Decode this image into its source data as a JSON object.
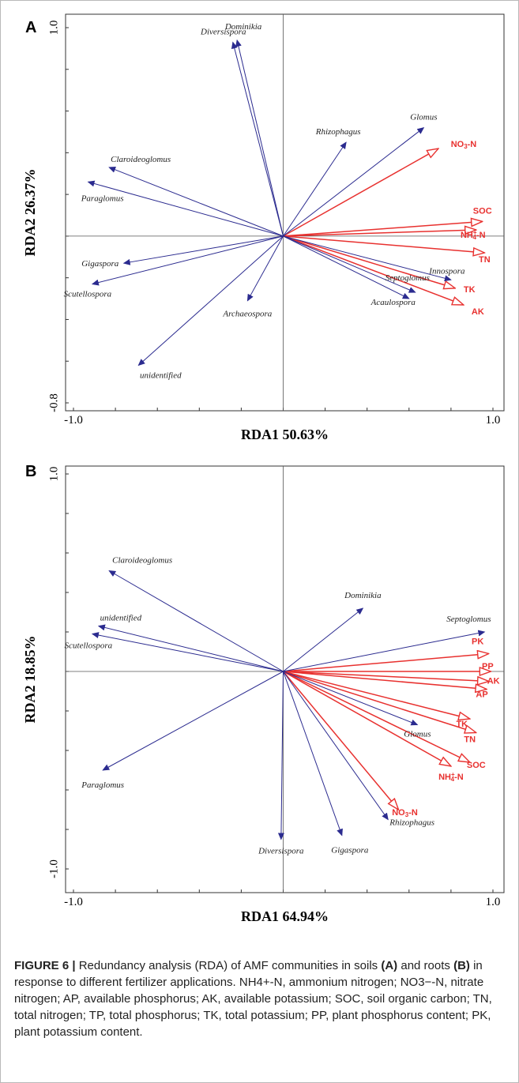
{
  "colors": {
    "species": "#2b2b8f",
    "environment": "#e8312f",
    "axis": "#555555"
  },
  "chart_data": [
    {
      "panel": "A",
      "type": "scatter",
      "xlabel": "RDA1 50.63%",
      "ylabel": "RDA2 26.37%",
      "xlim": [
        -1.0,
        1.0
      ],
      "ylim": [
        -0.8,
        1.0
      ],
      "x_ticks": [
        "-1.0",
        "1.0"
      ],
      "y_ticks": [
        "-0.8",
        "1.0"
      ],
      "species": [
        {
          "name": "Dominikia",
          "x": -0.22,
          "y": 0.94
        },
        {
          "name": "Diversispora",
          "x": -0.24,
          "y": 0.93
        },
        {
          "name": "Claroideoglomus",
          "x": -0.83,
          "y": 0.33
        },
        {
          "name": "Paraglomus",
          "x": -0.93,
          "y": 0.26
        },
        {
          "name": "Gigaspora",
          "x": -0.76,
          "y": -0.13
        },
        {
          "name": "Scutellospora",
          "x": -0.91,
          "y": -0.23
        },
        {
          "name": "unidentified",
          "x": -0.69,
          "y": -0.62
        },
        {
          "name": "Archaeospora",
          "x": -0.17,
          "y": -0.31
        },
        {
          "name": "Rhizophagus",
          "x": 0.3,
          "y": 0.45
        },
        {
          "name": "Glomus",
          "x": 0.67,
          "y": 0.52
        },
        {
          "name": "Innospora",
          "x": 0.8,
          "y": -0.21
        },
        {
          "name": "Septoglomus",
          "x": 0.63,
          "y": -0.27
        },
        {
          "name": "Acaulospora",
          "x": 0.6,
          "y": -0.3
        }
      ],
      "environment": [
        {
          "name": "NO3-N",
          "label": "NO3-N",
          "x": 0.74,
          "y": 0.42
        },
        {
          "name": "SOC",
          "label": "SOC",
          "x": 0.95,
          "y": 0.07
        },
        {
          "name": "NH4+-N",
          "label": "NH+4-N",
          "x": 0.92,
          "y": 0.03
        },
        {
          "name": "TN",
          "label": "TN",
          "x": 0.96,
          "y": -0.08
        },
        {
          "name": "TK",
          "label": "TK",
          "x": 0.82,
          "y": -0.25
        },
        {
          "name": "AK",
          "label": "AK",
          "x": 0.86,
          "y": -0.33
        }
      ]
    },
    {
      "panel": "B",
      "type": "scatter",
      "xlabel": "RDA1 64.94%",
      "ylabel": "RDA2 18.85%",
      "xlim": [
        -1.0,
        1.0
      ],
      "ylim": [
        -1.0,
        1.0
      ],
      "x_ticks": [
        "-1.0",
        "1.0"
      ],
      "y_ticks": [
        "-1.0",
        "1.0"
      ],
      "species": [
        {
          "name": "Claroideoglomus",
          "x": -0.83,
          "y": 0.51
        },
        {
          "name": "unidentified",
          "x": -0.88,
          "y": 0.23
        },
        {
          "name": "Scutellospora",
          "x": -0.91,
          "y": 0.19
        },
        {
          "name": "Paraglomus",
          "x": -0.86,
          "y": -0.5
        },
        {
          "name": "Dominikia",
          "x": 0.38,
          "y": 0.32
        },
        {
          "name": "Septoglomus",
          "x": 0.96,
          "y": 0.2
        },
        {
          "name": "Glomus",
          "x": 0.64,
          "y": -0.27
        },
        {
          "name": "Diversispora",
          "x": -0.01,
          "y": -0.85
        },
        {
          "name": "Rhizophagus",
          "x": 0.5,
          "y": -0.75
        },
        {
          "name": "Gigaspora",
          "x": 0.28,
          "y": -0.83
        }
      ],
      "environment": [
        {
          "name": "PK",
          "label": "PK",
          "x": 0.98,
          "y": 0.09
        },
        {
          "name": "PP",
          "label": "PP",
          "x": 0.99,
          "y": 0.0
        },
        {
          "name": "AK",
          "label": "AK",
          "x": 0.98,
          "y": -0.05
        },
        {
          "name": "AP",
          "label": "AP",
          "x": 0.97,
          "y": -0.09
        },
        {
          "name": "TK",
          "label": "TK",
          "x": 0.89,
          "y": -0.24
        },
        {
          "name": "TN",
          "label": "TN",
          "x": 0.92,
          "y": -0.31
        },
        {
          "name": "SOC",
          "label": "SOC",
          "x": 0.89,
          "y": -0.46
        },
        {
          "name": "NH4+-N",
          "label": "NH+4-N",
          "x": 0.8,
          "y": -0.48
        },
        {
          "name": "NO3-N",
          "label": "NO3-N",
          "x": 0.55,
          "y": -0.7
        }
      ]
    }
  ],
  "caption": {
    "figure_label": "FIGURE 6 |",
    "segments": [
      {
        "text": " Redundancy analysis (RDA) of AMF communities in soils ",
        "bold": false
      },
      {
        "text": "(A)",
        "bold": true
      },
      {
        "text": " and roots ",
        "bold": false
      },
      {
        "text": "(B)",
        "bold": true
      },
      {
        "text": " in response to different fertilizer applications. NH4+-N, ammonium nitrogen; NO3−-N, nitrate nitrogen; AP, available phosphorus; AK, available potassium; SOC, soil organic carbon; TN, total nitrogen; TP, total phosphorus; TK, total potassium; PP, plant phosphorus content; PK, plant potassium content.",
        "bold": false
      }
    ]
  }
}
